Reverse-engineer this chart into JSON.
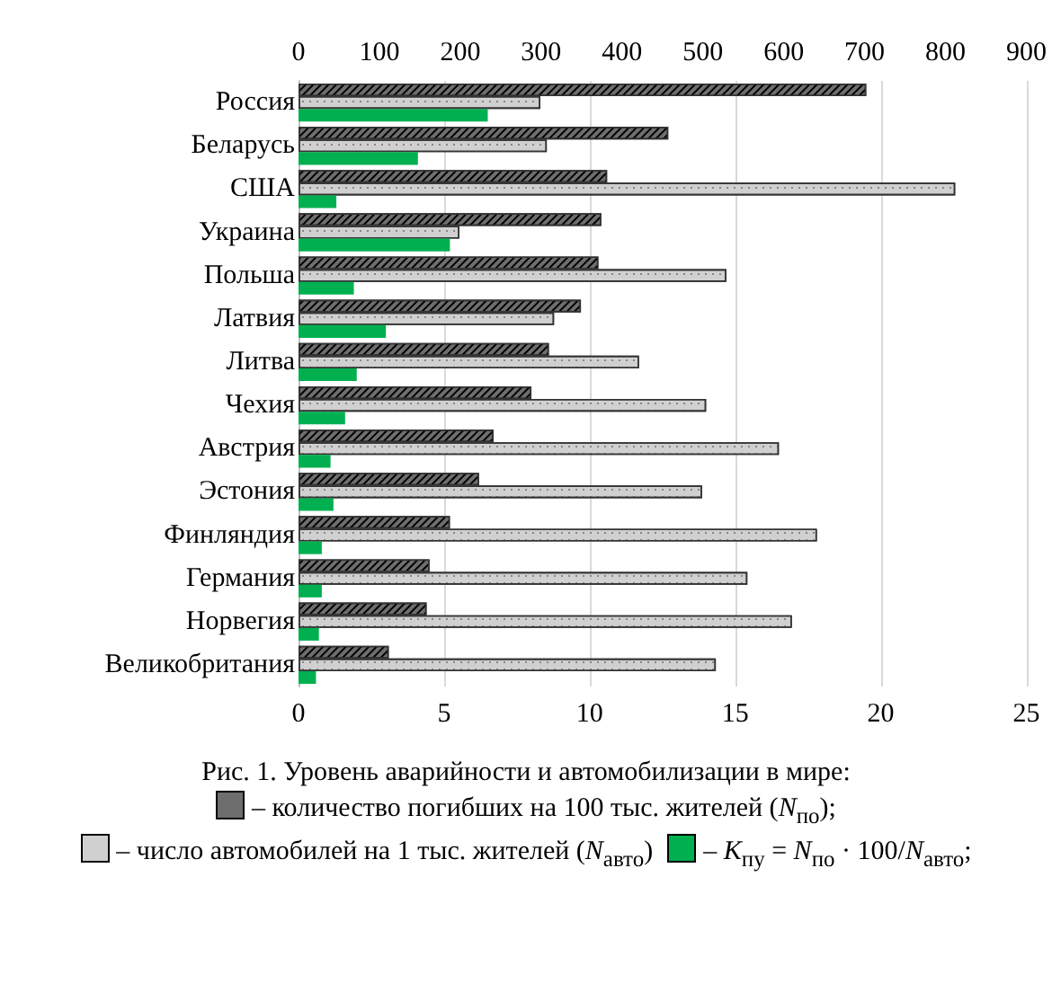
{
  "chart_data": {
    "type": "bar",
    "orientation": "horizontal",
    "title": "Рис. 1. Уровень аварийности и автомобилизации в мире:",
    "categories": [
      "Россия",
      "Беларусь",
      "США",
      "Украина",
      "Польша",
      "Латвия",
      "Литва",
      "Чехия",
      "Австрия",
      "Эстония",
      "Финляндия",
      "Германия",
      "Норвегия",
      "Великобритания"
    ],
    "series": [
      {
        "name": "– количество погибших на 100 тыс. жителей (N$_{по}$);",
        "color": "#6e6e6e",
        "values": [
          19.5,
          12.7,
          10.6,
          10.4,
          10.3,
          9.7,
          8.6,
          8.0,
          6.7,
          6.2,
          5.2,
          4.5,
          4.4,
          3.1
        ]
      },
      {
        "name": "– число автомобилей на 1 тыс. жителей (N$_{авто}$)",
        "color": "#d0d0d0",
        "axis": "x2",
        "values": [
          299,
          307,
          812,
          199,
          529,
          316,
          421,
          504,
          594,
          499,
          641,
          555,
          610,
          516
        ]
      },
      {
        "name": "– K$_{пу}$ = N$_{по}$ · 100/N$_{авто}$;",
        "color": "#00b050",
        "values": [
          6.5,
          4.1,
          1.3,
          5.2,
          1.9,
          3.0,
          2.0,
          1.6,
          1.1,
          1.2,
          0.8,
          0.8,
          0.7,
          0.6
        ]
      }
    ],
    "xlim": [
      0,
      25
    ],
    "xticks": [
      0,
      5,
      10,
      15,
      20,
      25
    ],
    "x2lim": [
      0,
      900
    ],
    "x2ticks": [
      0,
      100,
      200,
      300,
      400,
      500,
      600,
      700,
      800,
      900
    ],
    "grid": "x",
    "legend": "bottom"
  }
}
